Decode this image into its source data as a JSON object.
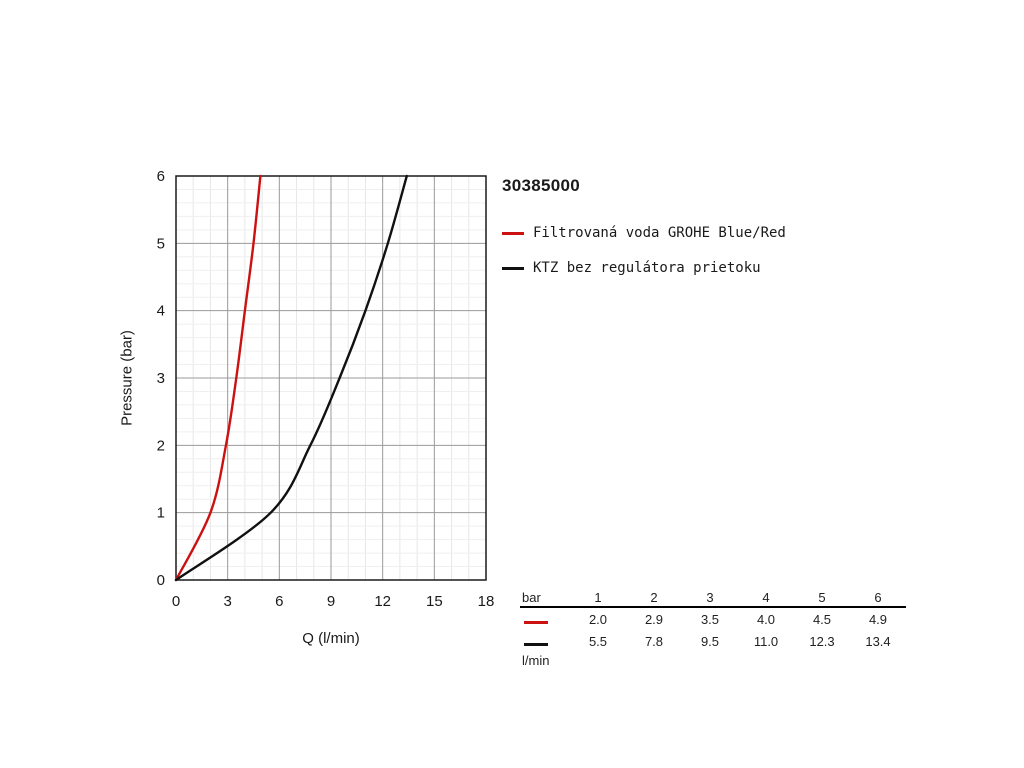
{
  "chart_data": {
    "type": "line",
    "title": "30385000",
    "xlabel": "Q (l/min)",
    "ylabel": "Pressure (bar)",
    "xlim": [
      0,
      18
    ],
    "ylim": [
      0,
      6
    ],
    "xticks": [
      0,
      3,
      6,
      9,
      12,
      15,
      18
    ],
    "yticks": [
      0,
      1,
      2,
      3,
      4,
      5,
      6
    ],
    "grid": true,
    "legend_position": "right-of-plot",
    "series": [
      {
        "name": "Filtrovaná voda GROHE Blue/Red",
        "color": "#cc1111",
        "points": [
          [
            0,
            0
          ],
          [
            2.0,
            1
          ],
          [
            2.9,
            2
          ],
          [
            3.5,
            3
          ],
          [
            4.0,
            4
          ],
          [
            4.5,
            5
          ],
          [
            4.9,
            6
          ]
        ]
      },
      {
        "name": "KTZ bez regulátora prietoku",
        "color": "#111111",
        "points": [
          [
            0,
            0
          ],
          [
            5.5,
            1
          ],
          [
            7.8,
            2
          ],
          [
            9.5,
            3
          ],
          [
            11.0,
            4
          ],
          [
            12.3,
            5
          ],
          [
            13.4,
            6
          ]
        ]
      }
    ]
  },
  "table": {
    "header_label": "bar",
    "pressures": [
      "1",
      "2",
      "3",
      "4",
      "5",
      "6"
    ],
    "rows": [
      {
        "swatch_color": "#cc1111",
        "values": [
          "2.0",
          "2.9",
          "3.5",
          "4.0",
          "4.5",
          "4.9"
        ]
      },
      {
        "swatch_color": "#111111",
        "values": [
          "5.5",
          "7.8",
          "9.5",
          "11.0",
          "12.3",
          "13.4"
        ]
      }
    ],
    "unit_label": "l/min"
  }
}
